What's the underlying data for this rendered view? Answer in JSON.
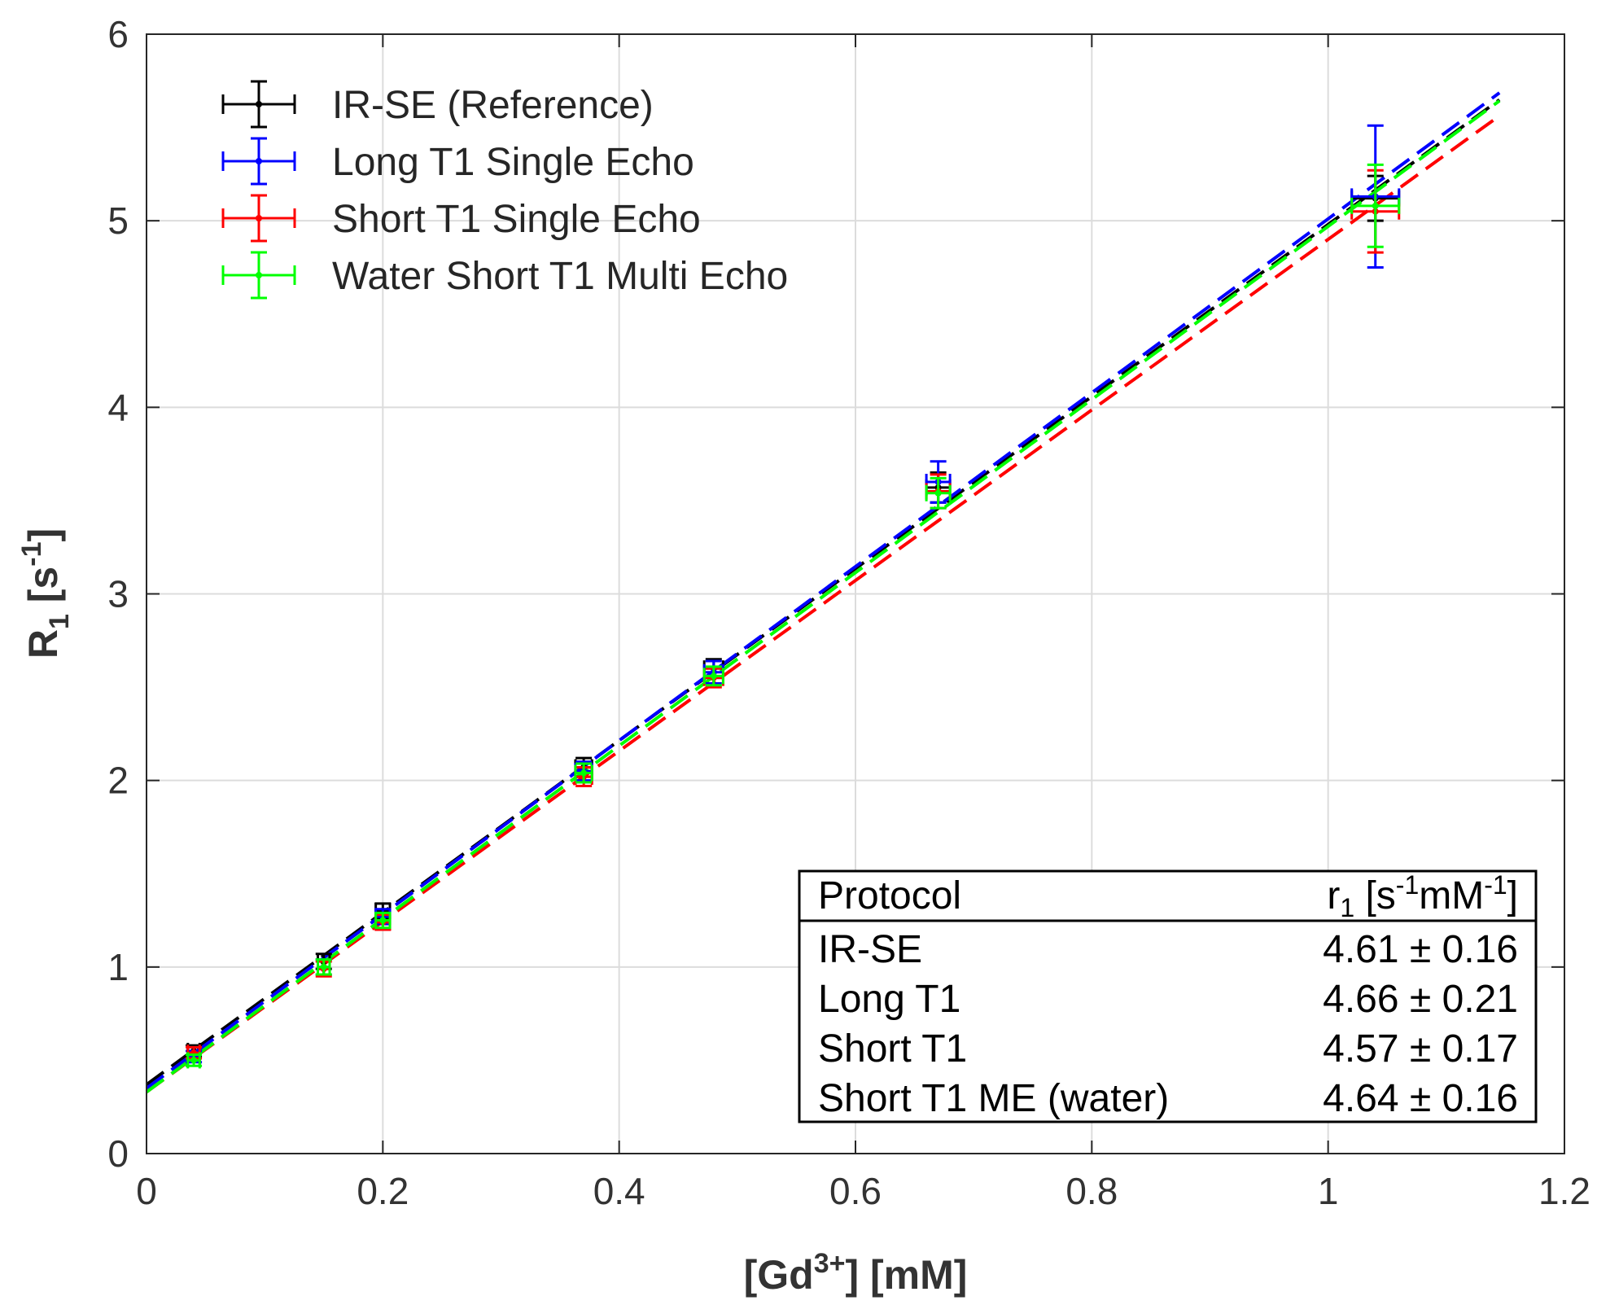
{
  "chart_data": {
    "type": "scatter",
    "title": "",
    "xlabel": "[Gd3+] [mM]",
    "xlabel_parts": {
      "base": "[Gd",
      "sup": "3+",
      "rest": "] [mM]"
    },
    "ylabel": "R1 [s-1]",
    "ylabel_parts": {
      "base": "R",
      "sub": "1",
      "mid": " [s",
      "sup": "-1",
      "rest": "]"
    },
    "xlim": [
      0,
      1.2
    ],
    "ylim": [
      0,
      6
    ],
    "xticks": [
      0,
      0.2,
      0.4,
      0.6,
      0.8,
      1,
      1.2
    ],
    "xtick_labels": [
      "0",
      "0.2",
      "0.4",
      "0.6",
      "0.8",
      "1",
      "1.2"
    ],
    "yticks": [
      0,
      1,
      2,
      3,
      4,
      5,
      6
    ],
    "ytick_labels": [
      "0",
      "1",
      "2",
      "3",
      "4",
      "5",
      "6"
    ],
    "grid": true,
    "legend_position": "top-left",
    "series": [
      {
        "name": "IR-SE (Reference)",
        "color": "#000000",
        "x": [
          0.04,
          0.15,
          0.2,
          0.37,
          0.48,
          0.67,
          1.04
        ],
        "y": [
          0.55,
          1.03,
          1.3,
          2.07,
          2.6,
          3.57,
          5.12
        ],
        "yerr": [
          0.03,
          0.04,
          0.04,
          0.05,
          0.05,
          0.08,
          0.12
        ],
        "xerr": [
          0.005,
          0.005,
          0.006,
          0.007,
          0.008,
          0.01,
          0.02
        ],
        "fit": {
          "slope": 4.61,
          "intercept": 0.37,
          "x_end": 1.145
        }
      },
      {
        "name": "Long T1 Single Echo",
        "color": "#0000ff",
        "x": [
          0.04,
          0.15,
          0.2,
          0.37,
          0.48,
          0.67,
          1.04
        ],
        "y": [
          0.52,
          1.0,
          1.27,
          2.05,
          2.58,
          3.6,
          5.13
        ],
        "yerr": [
          0.03,
          0.04,
          0.04,
          0.05,
          0.06,
          0.11,
          0.38
        ],
        "xerr": [
          0.005,
          0.005,
          0.006,
          0.007,
          0.008,
          0.01,
          0.02
        ],
        "fit": {
          "slope": 4.66,
          "intercept": 0.35,
          "x_end": 1.145
        }
      },
      {
        "name": "Short T1 Single Echo",
        "color": "#ff0000",
        "x": [
          0.04,
          0.15,
          0.2,
          0.37,
          0.48,
          0.67,
          1.04
        ],
        "y": [
          0.54,
          0.99,
          1.24,
          2.02,
          2.55,
          3.55,
          5.05
        ],
        "yerr": [
          0.03,
          0.04,
          0.04,
          0.05,
          0.05,
          0.09,
          0.22
        ],
        "xerr": [
          0.005,
          0.005,
          0.006,
          0.007,
          0.008,
          0.01,
          0.02
        ],
        "fit": {
          "slope": 4.57,
          "intercept": 0.33,
          "x_end": 1.145
        }
      },
      {
        "name": "Water Short T1 Multi Echo",
        "color": "#00ff00",
        "x": [
          0.04,
          0.15,
          0.2,
          0.37,
          0.48,
          0.67,
          1.04
        ],
        "y": [
          0.5,
          1.0,
          1.25,
          2.04,
          2.56,
          3.54,
          5.08
        ],
        "yerr": [
          0.03,
          0.04,
          0.04,
          0.05,
          0.05,
          0.08,
          0.22
        ],
        "xerr": [
          0.005,
          0.005,
          0.006,
          0.007,
          0.008,
          0.01,
          0.02
        ],
        "fit": {
          "slope": 4.64,
          "intercept": 0.33,
          "x_end": 1.145
        }
      }
    ],
    "table": {
      "headers": [
        "Protocol",
        "r1 [s-1mM-1]"
      ],
      "header_r1_parts": {
        "a": "r",
        "sub": "1",
        "b": " [s",
        "sup1": "-1",
        "c": "mM",
        "sup2": "-1",
        "d": "]"
      },
      "rows": [
        {
          "protocol": "IR-SE",
          "value": "4.61 ± 0.16"
        },
        {
          "protocol": "Long T1",
          "value": "4.66 ± 0.21"
        },
        {
          "protocol": "Short T1",
          "value": "4.57 ± 0.17"
        },
        {
          "protocol": "Short T1 ME (water)",
          "value": "4.64 ± 0.16"
        }
      ]
    }
  }
}
